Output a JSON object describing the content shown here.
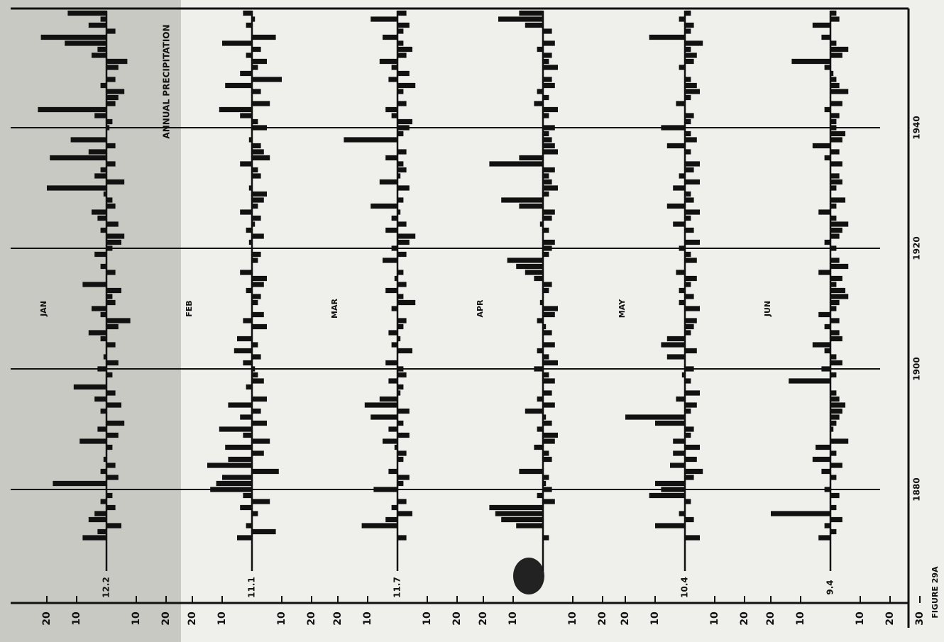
{
  "chart_data": {
    "type": "bar",
    "title": "ANNUAL PRECIPITATION",
    "caption": "FIGURE 29A",
    "color": "#111111",
    "x": [
      1872,
      1873,
      1874,
      1875,
      1876,
      1877,
      1878,
      1879,
      1880,
      1881,
      1882,
      1883,
      1884,
      1885,
      1886,
      1887,
      1888,
      1889,
      1890,
      1891,
      1892,
      1893,
      1894,
      1895,
      1896,
      1897,
      1898,
      1899,
      1900,
      1901,
      1902,
      1903,
      1904,
      1905,
      1906,
      1907,
      1908,
      1909,
      1910,
      1911,
      1912,
      1913,
      1914,
      1915,
      1916,
      1917,
      1918,
      1919,
      1920,
      1921,
      1922,
      1923,
      1924,
      1925,
      1926,
      1927,
      1928,
      1929,
      1930,
      1931,
      1932,
      1933,
      1934,
      1935,
      1936,
      1937,
      1938,
      1939,
      1940,
      1941,
      1942,
      1943,
      1944,
      1945,
      1946,
      1947,
      1948,
      1949,
      1950,
      1951,
      1952,
      1953,
      1954,
      1955,
      1956,
      1957,
      1958,
      1959
    ],
    "xlim": [
      1870,
      1960
    ],
    "xticks": [
      1880,
      1900,
      1920,
      1940
    ],
    "ylim": [
      -25,
      25
    ],
    "yticks": [
      20,
      10,
      {
        "value": -10,
        "label": "10"
      },
      {
        "value": -20,
        "label": "20"
      }
    ],
    "series": [
      {
        "name": "JAN",
        "mean": 12.2,
        "values": [
          8,
          3,
          -5,
          6,
          4,
          -3,
          2,
          -2,
          0,
          18,
          -4,
          2,
          -3,
          1,
          0,
          -2,
          9,
          -4,
          3,
          -6,
          0,
          2,
          -5,
          4,
          -3,
          11,
          0,
          -2,
          3,
          -4,
          1,
          0,
          -3,
          2,
          6,
          -4,
          -8,
          2,
          5,
          -3,
          -2,
          -5,
          8,
          0,
          -3,
          2,
          0,
          4,
          -2,
          -5,
          -6,
          2,
          -4,
          3,
          5,
          -3,
          -2,
          1,
          20,
          -6,
          4,
          2,
          -3,
          19,
          6,
          -3,
          12,
          0,
          -1,
          -2,
          4,
          23,
          -3,
          -4,
          -6,
          2,
          -3,
          0,
          -4,
          -7,
          5,
          3,
          14,
          22,
          -3,
          6,
          2,
          13
        ]
      },
      {
        "name": "FEB",
        "mean": 11.1,
        "values": [
          5,
          -8,
          2,
          0,
          -2,
          4,
          -6,
          3,
          14,
          12,
          10,
          -9,
          15,
          8,
          -4,
          9,
          -6,
          3,
          11,
          -5,
          4,
          -3,
          8,
          -5,
          0,
          2,
          -4,
          -2,
          -1,
          3,
          -3,
          6,
          -2,
          5,
          0,
          -5,
          3,
          -4,
          0,
          -2,
          -3,
          2,
          -4,
          -5,
          4,
          0,
          -2,
          -3,
          0,
          1,
          -4,
          2,
          -1,
          -3,
          4,
          -2,
          -4,
          -5,
          1,
          0,
          -3,
          -2,
          4,
          -6,
          -4,
          -3,
          1,
          0,
          -5,
          -2,
          4,
          11,
          -6,
          0,
          -3,
          9,
          -10,
          4,
          -2,
          -5,
          2,
          -3,
          10,
          -8,
          0,
          2,
          -1,
          3
        ]
      },
      {
        "name": "MAR",
        "mean": 11.7,
        "values": [
          -3,
          0,
          12,
          4,
          -5,
          2,
          -3,
          0,
          8,
          -2,
          -4,
          3,
          0,
          -2,
          -3,
          1,
          5,
          -4,
          3,
          -2,
          9,
          -4,
          11,
          6,
          -1,
          -2,
          3,
          -3,
          -2,
          4,
          0,
          -5,
          2,
          -1,
          3,
          -2,
          -3,
          0,
          2,
          -6,
          -2,
          4,
          -3,
          1,
          -2,
          0,
          5,
          -3,
          2,
          -4,
          -6,
          4,
          -3,
          2,
          -1,
          9,
          -2,
          0,
          -4,
          6,
          -1,
          -3,
          -2,
          4,
          -3,
          0,
          18,
          -2,
          -4,
          -5,
          2,
          4,
          -3,
          0,
          -2,
          -6,
          3,
          -4,
          2,
          6,
          -3,
          -5,
          -2,
          5,
          -2,
          -4,
          9,
          -3
        ]
      },
      {
        "name": "APR",
        "values": [
          -2,
          0,
          9,
          14,
          16,
          18,
          -4,
          2,
          -3,
          -1,
          -2,
          8,
          0,
          -3,
          -2,
          3,
          -4,
          -5,
          2,
          -3,
          -1,
          6,
          -4,
          2,
          -3,
          0,
          -4,
          -2,
          3,
          -5,
          -2,
          2,
          -4,
          0,
          -3,
          -1,
          2,
          -4,
          -5,
          1,
          0,
          -2,
          -3,
          3,
          6,
          9,
          12,
          -2,
          -3,
          -4,
          0,
          -2,
          1,
          -3,
          -4,
          8,
          14,
          -2,
          -5,
          -3,
          -2,
          -4,
          18,
          8,
          -5,
          -4,
          -3,
          -2,
          -4,
          0,
          -2,
          -5,
          3,
          -2,
          2,
          -4,
          -3,
          0,
          -5,
          -2,
          -3,
          2,
          -4,
          0,
          -3,
          6,
          15,
          8
        ]
      },
      {
        "name": "MAY",
        "mean": 10.4,
        "values": [
          -5,
          0,
          10,
          -3,
          2,
          0,
          -2,
          12,
          8,
          10,
          -3,
          -6,
          5,
          -4,
          4,
          -5,
          4,
          -2,
          -3,
          10,
          20,
          -2,
          -4,
          3,
          -5,
          0,
          -2,
          1,
          -3,
          0,
          6,
          -4,
          8,
          6,
          -2,
          -3,
          -4,
          0,
          -5,
          2,
          -3,
          2,
          -2,
          -4,
          3,
          0,
          -4,
          -2,
          2,
          -5,
          0,
          -3,
          4,
          -2,
          -5,
          6,
          -3,
          -2,
          4,
          -5,
          2,
          -3,
          -5,
          0,
          -2,
          6,
          -4,
          -2,
          8,
          -2,
          -3,
          0,
          3,
          -2,
          -5,
          -4,
          -2,
          0,
          2,
          -3,
          -4,
          -2,
          -6,
          12,
          -2,
          -3,
          2,
          -2
        ]
      },
      {
        "name": "JUN",
        "mean": 9.4,
        "yticks": [
          20,
          10,
          {
            "value": -10,
            "label": "10"
          },
          {
            "value": -20,
            "label": "20"
          },
          {
            "value": -30,
            "label": "30"
          }
        ],
        "values": [
          4,
          -2,
          2,
          -4,
          20,
          -2,
          0,
          -3,
          2,
          0,
          -2,
          3,
          -4,
          6,
          -2,
          5,
          -6,
          0,
          -1,
          -2,
          -3,
          -4,
          -5,
          -3,
          -2,
          0,
          14,
          -2,
          3,
          -4,
          -2,
          2,
          6,
          -4,
          -3,
          2,
          -3,
          4,
          -2,
          -3,
          -6,
          -5,
          -2,
          -4,
          4,
          -6,
          -3,
          0,
          -2,
          2,
          -3,
          -4,
          -6,
          -2,
          4,
          -2,
          -5,
          0,
          -2,
          -4,
          -3,
          0,
          -4,
          2,
          -3,
          6,
          -4,
          -5,
          -2,
          -2,
          -3,
          2,
          -4,
          0,
          -6,
          -3,
          -2,
          -1,
          2,
          13,
          -4,
          -6,
          -2,
          3,
          0,
          6,
          -3,
          -2
        ]
      }
    ]
  }
}
